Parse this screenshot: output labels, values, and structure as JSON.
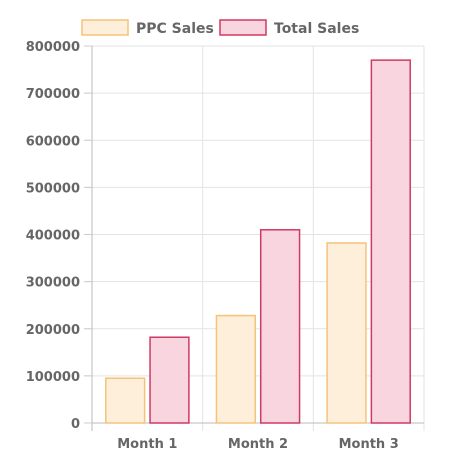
{
  "chart_data": {
    "type": "bar",
    "categories": [
      "Month 1",
      "Month 2",
      "Month 3"
    ],
    "series": [
      {
        "name": "PPC Sales",
        "values": [
          95000,
          228000,
          382000
        ],
        "fill": "#fdefd9",
        "stroke": "#f6c27a"
      },
      {
        "name": "Total Sales",
        "values": [
          182000,
          410000,
          770000
        ],
        "fill": "#f9d6df",
        "stroke": "#cf3a63"
      }
    ],
    "ylim": [
      0,
      800000
    ],
    "yticks": [
      "0",
      "100000",
      "200000",
      "300000",
      "400000",
      "500000",
      "600000",
      "700000",
      "800000"
    ],
    "grid": true,
    "legend": "top-center",
    "title": "",
    "xlabel": "",
    "ylabel": ""
  }
}
